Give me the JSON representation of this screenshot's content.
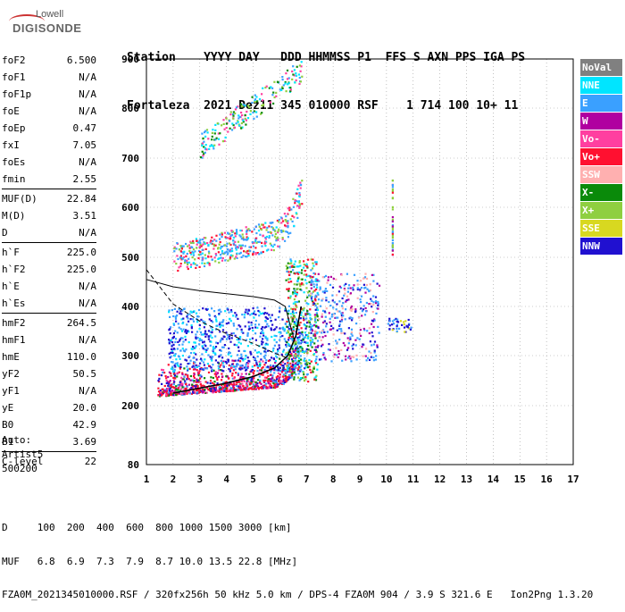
{
  "logo": {
    "line1": "Lowell",
    "line2": "DIGISONDE"
  },
  "header": {
    "line1": "Station    YYYY DAY   DDD HHMMSS P1  FFS S AXN PPS IGA PS",
    "line2": "Fortaleza  2021 Dez11 345 010000 RSF    1 714 100 10+ 11"
  },
  "params": [
    [
      {
        "name": "foF2",
        "value": "6.500"
      },
      {
        "name": "foF1",
        "value": "N/A"
      },
      {
        "name": "foF1p",
        "value": "N/A"
      },
      {
        "name": "foE",
        "value": "N/A"
      },
      {
        "name": "foEp",
        "value": "0.47"
      },
      {
        "name": "fxI",
        "value": "7.05"
      },
      {
        "name": "foEs",
        "value": "N/A"
      },
      {
        "name": "fmin",
        "value": "2.55"
      }
    ],
    [
      {
        "name": "MUF(D)",
        "value": "22.84"
      },
      {
        "name": "M(D)",
        "value": "3.51"
      },
      {
        "name": "D",
        "value": "N/A"
      }
    ],
    [
      {
        "name": "h`F",
        "value": "225.0"
      },
      {
        "name": "h`F2",
        "value": "225.0"
      },
      {
        "name": "h`E",
        "value": "N/A"
      },
      {
        "name": "h`Es",
        "value": "N/A"
      }
    ],
    [
      {
        "name": "hmF2",
        "value": "264.5"
      },
      {
        "name": "hmF1",
        "value": "N/A"
      },
      {
        "name": "hmE",
        "value": "110.0"
      },
      {
        "name": "yF2",
        "value": "50.5"
      },
      {
        "name": "yF1",
        "value": "N/A"
      },
      {
        "name": "yE",
        "value": "20.0"
      },
      {
        "name": "B0",
        "value": "42.9"
      },
      {
        "name": "B1",
        "value": "3.69"
      }
    ],
    [
      {
        "name": "C-level",
        "value": "22"
      }
    ]
  ],
  "auto": {
    "line1": "Auto:",
    "line2": "Artist5",
    "line3": "500200"
  },
  "legend": [
    {
      "label": "NoVal",
      "color": "#808080"
    },
    {
      "label": "NNE",
      "color": "#00e5ff"
    },
    {
      "label": "E",
      "color": "#3aa0ff"
    },
    {
      "label": "W",
      "color": "#b000a0"
    },
    {
      "label": "Vo-",
      "color": "#ff3fa0"
    },
    {
      "label": "Vo+",
      "color": "#ff1030"
    },
    {
      "label": "SSW",
      "color": "#ffb0b0"
    },
    {
      "label": "X-",
      "color": "#0a8a0a"
    },
    {
      "label": "X+",
      "color": "#8fcf40"
    },
    {
      "label": "SSE",
      "color": "#d8d820"
    },
    {
      "label": "NNW",
      "color": "#2010d0"
    }
  ],
  "chart_data": {
    "type": "scatter",
    "xlim": [
      1,
      17
    ],
    "ylim": [
      80,
      900
    ],
    "x_ticks": [
      "1",
      "2",
      "3",
      "4",
      "5",
      "6",
      "7",
      "8",
      "9",
      "10",
      "11",
      "12",
      "13",
      "14",
      "15",
      "16",
      "17"
    ],
    "y_ticks": [
      "80",
      "200",
      "300",
      "400",
      "500",
      "600",
      "700",
      "800",
      "900"
    ],
    "grid": true
  },
  "footer": {
    "line1": "D     100  200  400  600  800 1000 1500 3000 [km]",
    "line2": "MUF   6.8  6.9  7.3  7.9  8.7 10.0 13.5 22.8 [MHz]",
    "line3": "FZA0M_2021345010000.RSF / 320fx256h 50 kHz 5.0 km / DPS-4 FZA0M 904 / 3.9 S 321.6 E   Ion2Png 1.3.20"
  }
}
